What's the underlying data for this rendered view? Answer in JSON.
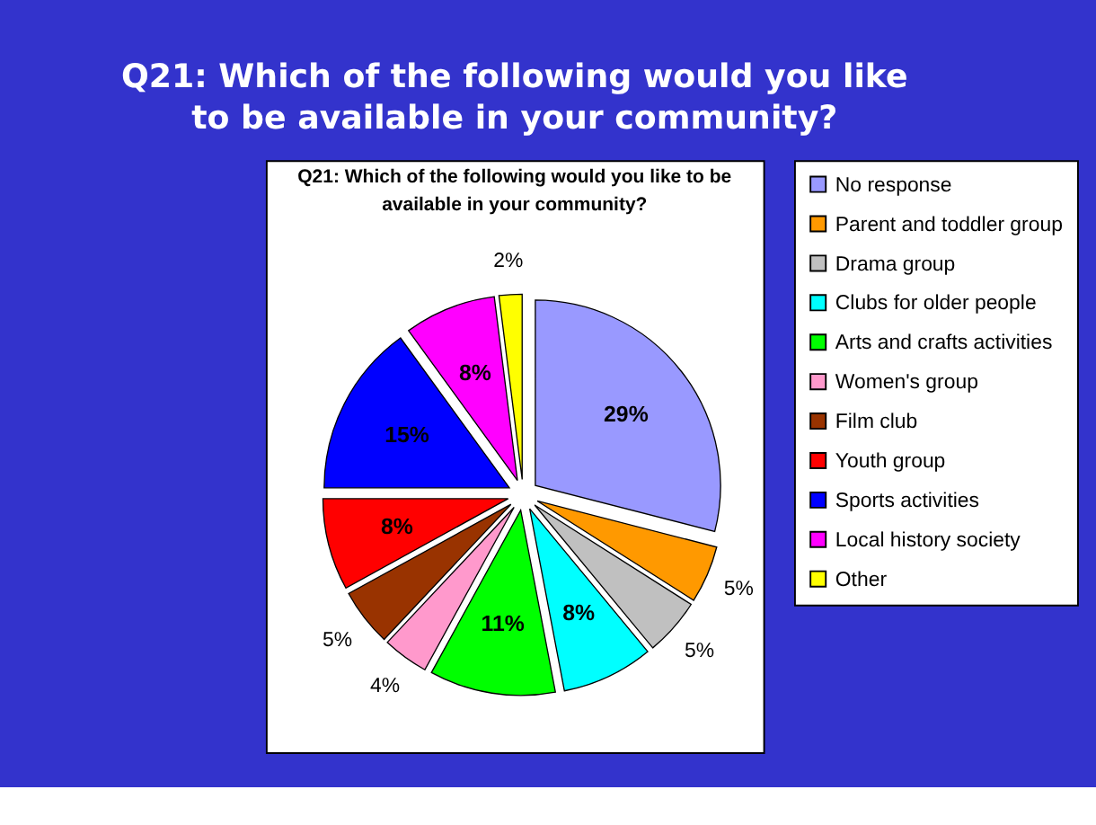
{
  "chart_data": {
    "type": "pie",
    "title": "Q21: Which of the following would you like\nto be available in your community?",
    "subtitle": "Q21: Which of the following would you like to be\navailable in your community?",
    "categories": [
      "No response",
      "Parent and toddler group",
      "Drama group",
      "Clubs for older people",
      "Arts and crafts activities",
      "Women's group",
      "Film club",
      "Youth group",
      "Sports activities",
      "Local history society",
      "Other"
    ],
    "values": [
      29,
      5,
      5,
      8,
      11,
      4,
      5,
      8,
      15,
      8,
      2
    ],
    "colors": [
      "#9999ff",
      "#ff9900",
      "#c0c0c0",
      "#00ffff",
      "#00ff00",
      "#ff99cc",
      "#993300",
      "#ff0000",
      "#0000ff",
      "#ff00ff",
      "#ffff00"
    ],
    "value_labels": [
      "29%",
      "5%",
      "5%",
      "8%",
      "11%",
      "4%",
      "5%",
      "8%",
      "15%",
      "8%",
      "2%"
    ],
    "legend": "right"
  }
}
